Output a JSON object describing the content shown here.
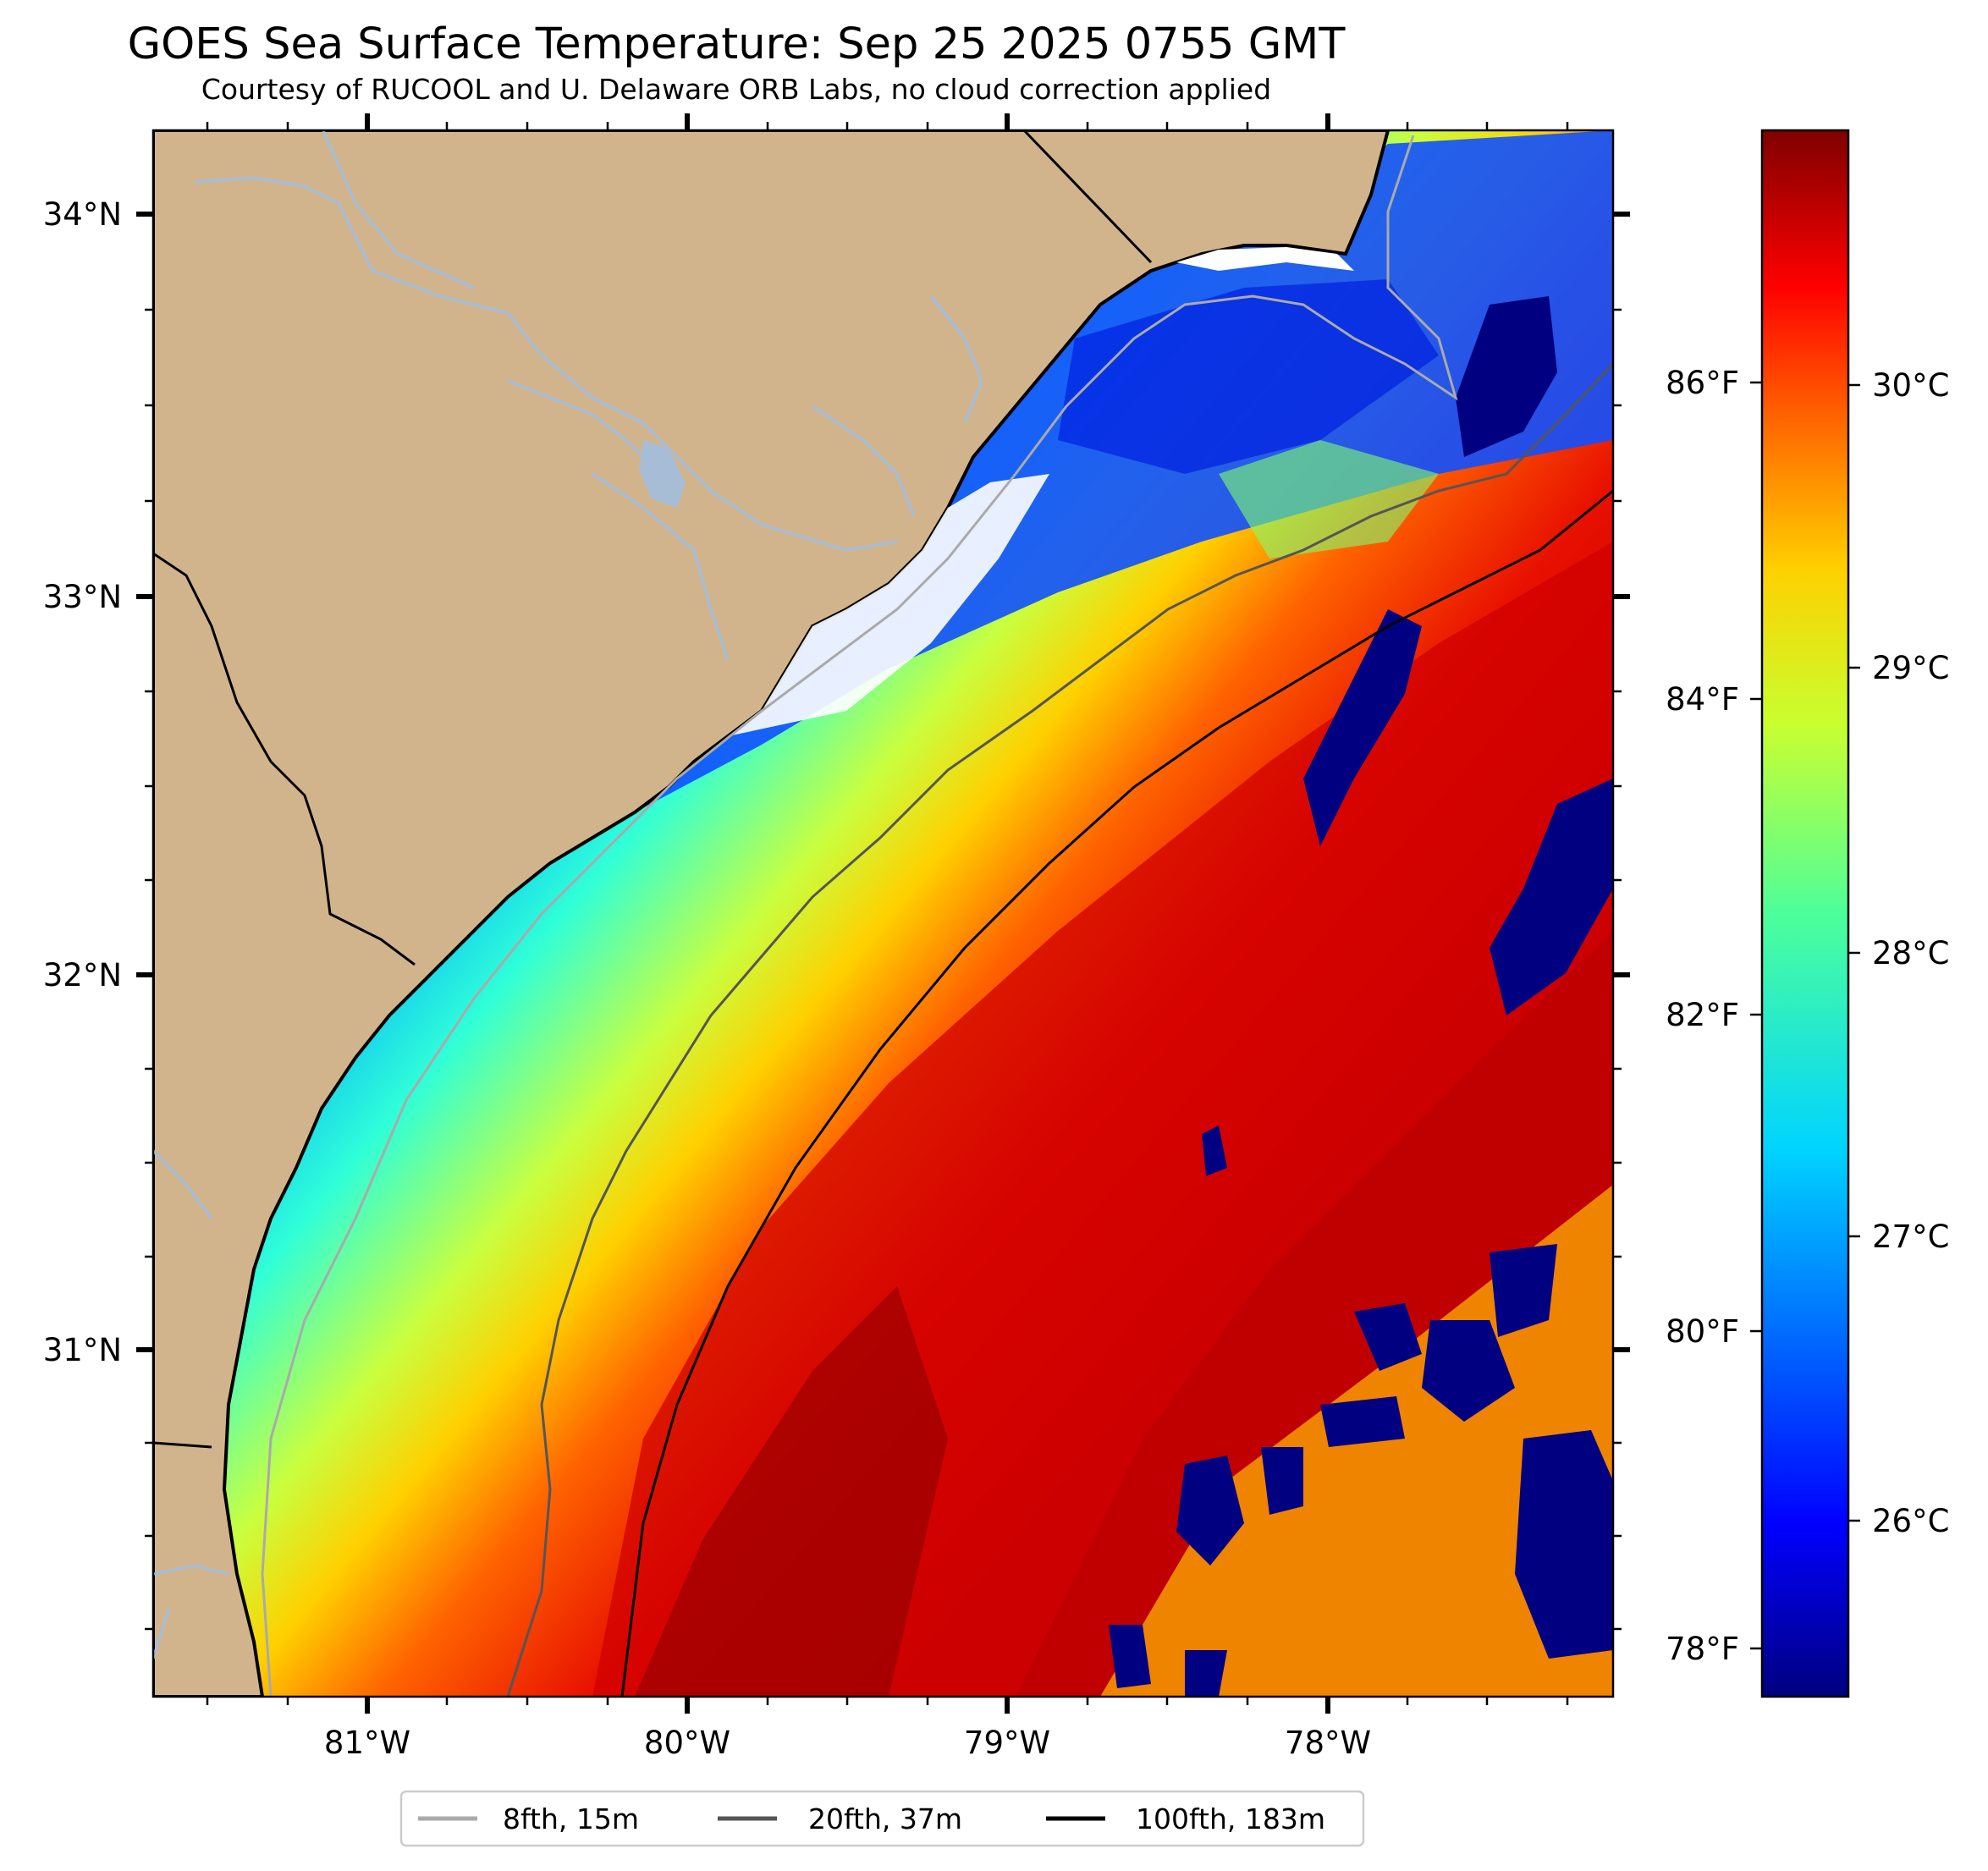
{
  "title": "GOES Sea Surface Temperature: Sep 25 2025 0755 GMT",
  "subtitle": "Courtesy of RUCOOL and U. Delaware ORB Labs, no cloud correction applied",
  "map": {
    "longitude_labels": [
      "81°W",
      "80°W",
      "79°W",
      "78°W"
    ],
    "latitude_labels": [
      "34°N",
      "33°N",
      "32°N",
      "31°N"
    ],
    "colors": {
      "land": "#d2b48c",
      "river": "#a7bdd6",
      "coast": "#000000"
    }
  },
  "colorbar": {
    "celsius_labels": [
      "30°C",
      "29°C",
      "28°C",
      "27°C",
      "26°C"
    ],
    "fahrenheit_labels": [
      "86°F",
      "84°F",
      "82°F",
      "80°F",
      "78°F"
    ],
    "colormap": "jet"
  },
  "legend": {
    "items": [
      {
        "label": "8fth, 15m",
        "color": "#aaaaaa"
      },
      {
        "label": "20fth, 37m",
        "color": "#555555"
      },
      {
        "label": "100fth, 183m",
        "color": "#000000"
      }
    ]
  }
}
